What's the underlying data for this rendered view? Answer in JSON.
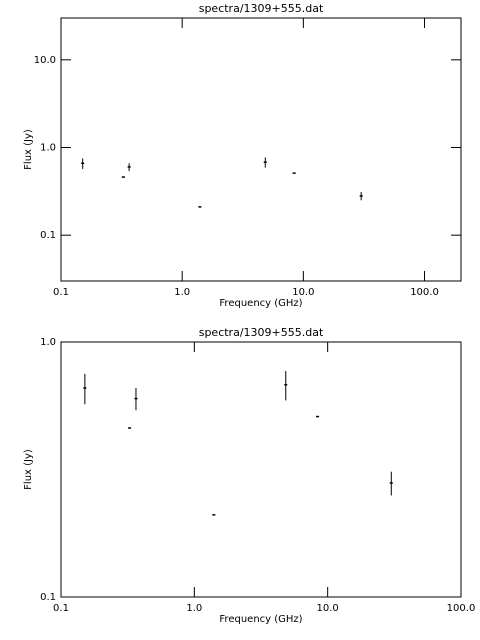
{
  "chart_data": [
    {
      "type": "scatter",
      "title": "spectra/1309+555.dat",
      "x_label": "Frequency (GHz)",
      "y_label": "Flux (Jy)",
      "x": [
        0.151,
        0.327,
        0.365,
        1.4,
        4.85,
        8.4,
        30
      ],
      "values": [
        0.66,
        0.46,
        0.6,
        0.21,
        0.68,
        0.51,
        0.28
      ],
      "errors": [
        0.09,
        null,
        0.06,
        null,
        0.09,
        null,
        0.03
      ],
      "xlim": [
        0.1,
        200
      ],
      "ylim": [
        0.03,
        30
      ],
      "log_x": true,
      "log_y": true,
      "color": "#000000",
      "xticks": [
        0.1,
        {
          "value": 1,
          "label": "1.0"
        },
        {
          "value": 10,
          "label": "10.0"
        },
        {
          "value": 100,
          "label": "100.0"
        }
      ],
      "yticks": [
        0.1,
        {
          "value": 1,
          "label": "1.0"
        },
        {
          "value": 10,
          "label": "10.0"
        }
      ]
    },
    {
      "type": "scatter",
      "title": "spectra/1309+555.dat",
      "x_label": "Frequency (GHz)",
      "y_label": "Flux (Jy)",
      "x": [
        0.151,
        0.327,
        0.365,
        1.4,
        4.85,
        8.4,
        30
      ],
      "values": [
        0.66,
        0.46,
        0.6,
        0.21,
        0.68,
        0.51,
        0.28
      ],
      "errors": [
        0.09,
        null,
        0.06,
        null,
        0.09,
        null,
        0.03
      ],
      "xlim": [
        0.1,
        100
      ],
      "ylim": [
        0.1,
        1
      ],
      "log_x": true,
      "log_y": true,
      "color": "#000000",
      "xticks": [
        0.1,
        {
          "value": 1,
          "label": "1.0"
        },
        {
          "value": 10,
          "label": "10.0"
        },
        {
          "value": 100,
          "label": "100.0"
        }
      ],
      "yticks": [
        0.1,
        {
          "value": 1,
          "label": "1.0"
        }
      ]
    }
  ]
}
